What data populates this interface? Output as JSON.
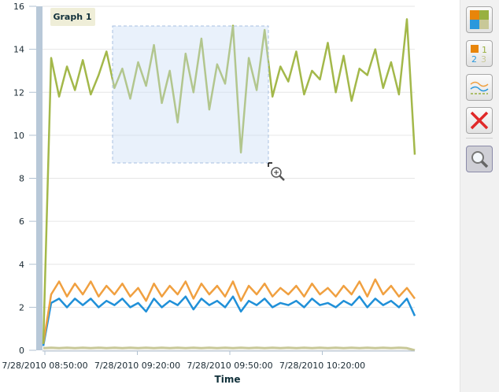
{
  "chart_data": {
    "type": "line",
    "title": "Graph 1",
    "xlabel": "Time",
    "ylabel": "",
    "ylim": [
      0,
      16
    ],
    "yticks": [
      "0",
      "2",
      "4",
      "6",
      "8",
      "10",
      "12",
      "14",
      "16"
    ],
    "xticks": [
      "7/28/2010 08:50:00",
      "7/28/2010 09:20:00",
      "7/28/2010 09:50:00",
      "7/28/2010 10:20:00"
    ],
    "x_minutes_range": [
      0,
      120
    ],
    "grid": true,
    "series": [
      {
        "name": "green",
        "color": "#a3b84a",
        "values": [
          0.3,
          13.6,
          11.8,
          13.2,
          12.1,
          13.5,
          11.9,
          12.8,
          13.9,
          12.2,
          13.1,
          11.7,
          13.4,
          12.3,
          14.2,
          11.5,
          13.0,
          10.6,
          13.8,
          12.0,
          14.5,
          11.2,
          13.3,
          12.4,
          15.1,
          9.2,
          13.6,
          12.1,
          14.9,
          11.8,
          13.2,
          12.5,
          13.9,
          11.9,
          13.0,
          12.6,
          14.3,
          12.0,
          13.7,
          11.6,
          13.1,
          12.8,
          14.0,
          12.2,
          13.4,
          11.9,
          15.4,
          9.1
        ]
      },
      {
        "name": "orange",
        "color": "#f0a040",
        "values": [
          0.3,
          2.6,
          3.2,
          2.5,
          3.1,
          2.6,
          3.2,
          2.5,
          3.0,
          2.6,
          3.1,
          2.5,
          2.9,
          2.3,
          3.1,
          2.5,
          3.0,
          2.6,
          3.2,
          2.4,
          3.1,
          2.6,
          3.0,
          2.5,
          3.2,
          2.3,
          3.0,
          2.6,
          3.1,
          2.5,
          2.9,
          2.6,
          3.0,
          2.5,
          3.1,
          2.6,
          2.9,
          2.5,
          3.0,
          2.6,
          3.2,
          2.5,
          3.3,
          2.6,
          3.0,
          2.5,
          2.9,
          2.4
        ]
      },
      {
        "name": "blue",
        "color": "#2090d8",
        "values": [
          0.2,
          2.2,
          2.4,
          2.0,
          2.4,
          2.1,
          2.4,
          2.0,
          2.3,
          2.1,
          2.4,
          2.0,
          2.2,
          1.8,
          2.4,
          2.0,
          2.3,
          2.1,
          2.5,
          1.9,
          2.4,
          2.1,
          2.3,
          2.0,
          2.5,
          1.8,
          2.3,
          2.1,
          2.4,
          2.0,
          2.2,
          2.1,
          2.3,
          2.0,
          2.4,
          2.1,
          2.2,
          2.0,
          2.3,
          2.1,
          2.5,
          2.0,
          2.4,
          2.1,
          2.3,
          2.0,
          2.4,
          1.6
        ]
      },
      {
        "name": "tan",
        "color": "#c8c898",
        "values": [
          0.1,
          0.12,
          0.1,
          0.12,
          0.1,
          0.12,
          0.1,
          0.12,
          0.1,
          0.12,
          0.1,
          0.12,
          0.1,
          0.12,
          0.1,
          0.12,
          0.1,
          0.12,
          0.1,
          0.12,
          0.1,
          0.12,
          0.1,
          0.12,
          0.1,
          0.12,
          0.1,
          0.12,
          0.1,
          0.12,
          0.1,
          0.12,
          0.1,
          0.12,
          0.1,
          0.12,
          0.1,
          0.12,
          0.1,
          0.12,
          0.1,
          0.12,
          0.1,
          0.12,
          0.1,
          0.12,
          0.1,
          0.0
        ]
      }
    ]
  },
  "toolbar": {
    "buttons": [
      "color-palette",
      "numbered-legend",
      "line-styles",
      "clear",
      "zoom"
    ],
    "active": "zoom"
  }
}
